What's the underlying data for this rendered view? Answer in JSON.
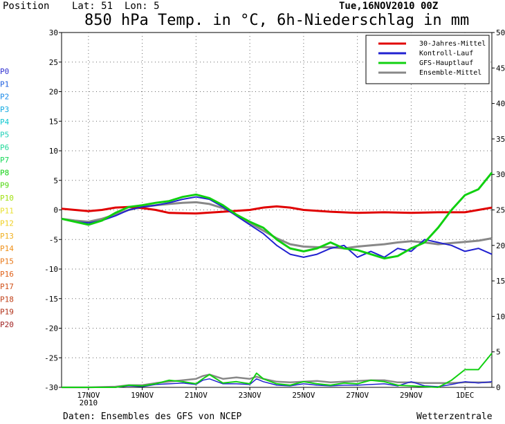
{
  "header": {
    "position": "Position",
    "lat": "Lat: 51",
    "lon": "Lon: 5",
    "run": "Tue,16NOV2010 00Z"
  },
  "footer": {
    "source": "Daten: Ensembles des GFS von NCEP",
    "brand": "Wetterzentrale"
  },
  "colors": {
    "climate": "#e00000",
    "control": "#2020d0",
    "gfs": "#10d010",
    "mean": "#888888",
    "members": [
      "#3030d0",
      "#2060e0",
      "#1888e8",
      "#10a8e0",
      "#10c8d0",
      "#20d0b8",
      "#20d898",
      "#18d858",
      "#10d010",
      "#50d810",
      "#a0e010",
      "#e8e030",
      "#f0d020",
      "#f0b020",
      "#f09018",
      "#e87818",
      "#e06018",
      "#d05018",
      "#c04018",
      "#b03018",
      "#a02020"
    ]
  },
  "chart_data": {
    "type": "line",
    "title": "850 hPa Temp. in °C, 6h-Niederschlag in mm",
    "xlabel": "",
    "ylabel": "",
    "ylim": [
      -30,
      30
    ],
    "y2lim": [
      0,
      50
    ],
    "yticks": [
      "30",
      "25",
      "20",
      "15",
      "10",
      "5",
      "0",
      "-5",
      "-10",
      "-15",
      "-20",
      "-25",
      "-30"
    ],
    "y2ticks": [
      "50",
      "45",
      "40",
      "35",
      "30",
      "25",
      "20",
      "15",
      "10",
      "5",
      "0"
    ],
    "xlim": [
      0,
      16
    ],
    "xticks": [
      {
        "day": 1,
        "label": "17NOV",
        "sub": "2010"
      },
      {
        "day": 3,
        "label": "19NOV",
        "sub": ""
      },
      {
        "day": 5,
        "label": "21NOV",
        "sub": ""
      },
      {
        "day": 7,
        "label": "23NOV",
        "sub": ""
      },
      {
        "day": 9,
        "label": "25NOV",
        "sub": ""
      },
      {
        "day": 11,
        "label": "27NOV",
        "sub": ""
      },
      {
        "day": 13,
        "label": "29NOV",
        "sub": ""
      },
      {
        "day": 15,
        "label": "1DEC",
        "sub": ""
      }
    ],
    "grid": true,
    "legend_position": "top-right",
    "members": [
      "P0",
      "P1",
      "P2",
      "P3",
      "P4",
      "P5",
      "P6",
      "P7",
      "P8",
      "P9",
      "P10",
      "P11",
      "P12",
      "P13",
      "P14",
      "P15",
      "P16",
      "P17",
      "P18",
      "P19",
      "P20"
    ],
    "legend": [
      {
        "label": "30-Jahres-Mittel",
        "key": "climate"
      },
      {
        "label": "Kontroll-Lauf",
        "key": "control"
      },
      {
        "label": "GFS-Hauptlauf",
        "key": "gfs"
      },
      {
        "label": "Ensemble-Mittel",
        "key": "mean"
      }
    ],
    "temperature": {
      "climate": {
        "x": [
          0,
          0.5,
          1,
          1.5,
          2,
          2.5,
          3,
          3.5,
          4,
          5,
          6,
          7,
          7.5,
          8,
          8.5,
          9,
          10,
          11,
          12,
          13,
          14,
          15,
          15.5,
          16
        ],
        "y": [
          0.2,
          0,
          -0.2,
          0,
          0.4,
          0.5,
          0.3,
          0,
          -0.5,
          -0.6,
          -0.3,
          0,
          0.4,
          0.6,
          0.4,
          0,
          -0.3,
          -0.5,
          -0.4,
          -0.5,
          -0.4,
          -0.4,
          0,
          0.4
        ]
      },
      "control": {
        "x": [
          0,
          0.5,
          1,
          1.5,
          2,
          2.5,
          3,
          3.5,
          4,
          4.5,
          5,
          5.5,
          6,
          6.5,
          7,
          7.5,
          8,
          8.5,
          9,
          9.5,
          10,
          10.5,
          11,
          11.5,
          12,
          12.5,
          13,
          13.5,
          14,
          14.5,
          15,
          15.5,
          16
        ],
        "y": [
          -1.5,
          -2,
          -2.2,
          -1.8,
          -1,
          0,
          0.5,
          0.8,
          1.2,
          1.8,
          2.2,
          1.8,
          0.5,
          -1,
          -2.5,
          -4,
          -6,
          -7.5,
          -8,
          -7.5,
          -6.5,
          -6,
          -8,
          -7,
          -8,
          -6.5,
          -7,
          -5,
          -5.5,
          -6,
          -7,
          -6.5,
          -7.5
        ]
      },
      "gfs": {
        "x": [
          0,
          0.5,
          1,
          1.5,
          2,
          2.5,
          3,
          3.5,
          4,
          4.5,
          5,
          5.5,
          6,
          6.5,
          7,
          7.5,
          8,
          8.5,
          9,
          9.5,
          10,
          10.5,
          11,
          11.5,
          12,
          12.5,
          13,
          13.5,
          14,
          14.5,
          15,
          15.5,
          16
        ],
        "y": [
          -1.5,
          -2,
          -2.5,
          -1.8,
          -0.5,
          0.5,
          0.8,
          1.2,
          1.5,
          2.2,
          2.6,
          2,
          0.8,
          -0.8,
          -2,
          -3,
          -5,
          -6.5,
          -7,
          -6.5,
          -5.5,
          -6.5,
          -6.8,
          -7.5,
          -8.2,
          -7.8,
          -6.5,
          -5.5,
          -3,
          0,
          2.5,
          3.5,
          6.3
        ]
      },
      "mean": {
        "x": [
          0,
          0.5,
          1,
          1.5,
          2,
          2.5,
          3,
          3.5,
          4,
          4.5,
          5,
          5.5,
          6,
          6.5,
          7,
          7.5,
          8,
          8.5,
          9,
          9.5,
          10,
          10.5,
          11,
          11.5,
          12,
          12.5,
          13,
          13.5,
          14,
          14.5,
          15,
          15.5,
          16
        ],
        "y": [
          -1.5,
          -1.8,
          -2,
          -1.5,
          -0.8,
          0,
          0.5,
          0.8,
          1,
          1.2,
          1.3,
          1,
          0.3,
          -0.8,
          -2.2,
          -3.5,
          -4.8,
          -5.8,
          -6.2,
          -6.3,
          -6.3,
          -6.5,
          -6.2,
          -6,
          -5.8,
          -5.5,
          -5.3,
          -5.5,
          -5.8,
          -5.6,
          -5.4,
          -5.2,
          -4.8
        ]
      }
    },
    "precipitation": {
      "x": [
        0,
        1,
        2,
        2.5,
        3,
        3.5,
        4,
        4.5,
        5,
        5.25,
        5.5,
        6,
        6.5,
        7,
        7.25,
        7.5,
        8,
        8.5,
        9,
        9.5,
        10,
        10.5,
        11,
        11.5,
        12,
        12.5,
        13,
        13.5,
        14,
        14.5,
        15,
        15.5,
        16
      ],
      "gfs": [
        0,
        0,
        0,
        0.3,
        0.2,
        0.5,
        1,
        0.8,
        0.5,
        1.2,
        1.8,
        0.6,
        0.8,
        0.5,
        2,
        1.2,
        0.5,
        0.3,
        0.8,
        0.5,
        0.3,
        0.6,
        0.5,
        1,
        0.8,
        0.3,
        0.2,
        0.1,
        0,
        1,
        2.5,
        2.5,
        4.8
      ],
      "control": [
        0,
        0,
        0,
        0.2,
        0.1,
        0.4,
        0.5,
        0.6,
        0.4,
        1,
        1.2,
        0.5,
        0.5,
        0.4,
        1.2,
        0.8,
        0.3,
        0.2,
        0.5,
        0.3,
        0.2,
        0.3,
        0.3,
        0.4,
        0.5,
        0.2,
        0.8,
        0.2,
        0.1,
        0.4,
        0.8,
        0.6,
        0.8
      ],
      "mean": [
        0,
        0,
        0.1,
        0.3,
        0.3,
        0.6,
        0.8,
        1,
        1.2,
        1.6,
        1.8,
        1.2,
        1.4,
        1.2,
        1.5,
        1.2,
        0.8,
        0.7,
        0.8,
        0.9,
        0.7,
        0.8,
        0.9,
        1,
        1,
        0.7,
        0.7,
        0.6,
        0.6,
        0.6,
        0.7,
        0.7,
        0.7
      ]
    }
  }
}
